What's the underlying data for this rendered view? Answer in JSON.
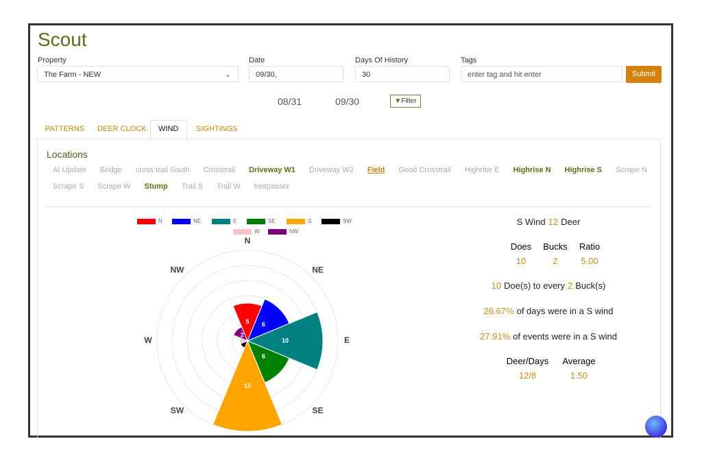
{
  "header": {
    "title": "Scout"
  },
  "form": {
    "property": {
      "label": "Property",
      "value": "The Farm - NEW"
    },
    "date": {
      "label": "Date",
      "value": "09/30,"
    },
    "days": {
      "label": "Days Of History",
      "value": 30
    },
    "tags": {
      "label": "Tags",
      "placeholder": "enter tag and hit enter"
    },
    "submit": "Submit"
  },
  "range": {
    "start": "08/31",
    "end": "09/30",
    "filter": "Filter"
  },
  "tabs": {
    "items": [
      "PATTERNS",
      "DEER CLOCK",
      "WIND",
      "SIGHTINGS"
    ],
    "active": 2
  },
  "locations": {
    "title": "Locations",
    "items": [
      {
        "label": "AI Update",
        "style": "muted"
      },
      {
        "label": "Bridge",
        "style": "muted"
      },
      {
        "label": "cross trail South",
        "style": "muted"
      },
      {
        "label": "Crosstrail",
        "style": "muted"
      },
      {
        "label": "Driveway W1",
        "style": "bold"
      },
      {
        "label": "Driveway W2",
        "style": "muted"
      },
      {
        "label": "Field",
        "style": "selected"
      },
      {
        "label": "Good Crosstrail",
        "style": "muted"
      },
      {
        "label": "Highrise E",
        "style": "muted"
      },
      {
        "label": "Highrise N",
        "style": "bold"
      },
      {
        "label": "Highrise S",
        "style": "bold"
      },
      {
        "label": "Scrape N",
        "style": "muted"
      },
      {
        "label": "Scrape S",
        "style": "muted"
      },
      {
        "label": "Scrape W",
        "style": "muted"
      },
      {
        "label": "Stump",
        "style": "bold"
      },
      {
        "label": "Trail S",
        "style": "muted"
      },
      {
        "label": "Trail W",
        "style": "muted"
      },
      {
        "label": "trespasser",
        "style": "muted"
      }
    ]
  },
  "chart_data": {
    "type": "rose",
    "categories": [
      "N",
      "NE",
      "E",
      "SE",
      "S",
      "SW",
      "W",
      "NW"
    ],
    "values": [
      5,
      6,
      10,
      6,
      12,
      1,
      1,
      2
    ],
    "colors": [
      "#ff0000",
      "#0000ff",
      "#008080",
      "#008000",
      "#ffa500",
      "#000000",
      "#ffc0cb",
      "#800080"
    ],
    "rlim": [
      0,
      12
    ],
    "rticks": [
      2,
      4,
      6,
      8,
      10,
      12
    ]
  },
  "stats": {
    "summary": {
      "wind": "S Wind",
      "count": 12,
      "unit": "Deer"
    },
    "table": {
      "headers": [
        "Does",
        "Bucks",
        "Ratio"
      ],
      "values": [
        10,
        2,
        "5.00"
      ]
    },
    "ratio": {
      "does": 10,
      "does_text": "Doe(s) to every",
      "bucks": 2,
      "bucks_text": "Buck(s)"
    },
    "days": {
      "value": "26.67%",
      "text": "of days were in a S wind"
    },
    "events": {
      "value": "27.91%",
      "text": "of events were in a S wind"
    },
    "deer_days": {
      "headers": [
        "Deer/Days",
        "Average"
      ],
      "values": [
        "12/8",
        "1.50"
      ]
    }
  }
}
